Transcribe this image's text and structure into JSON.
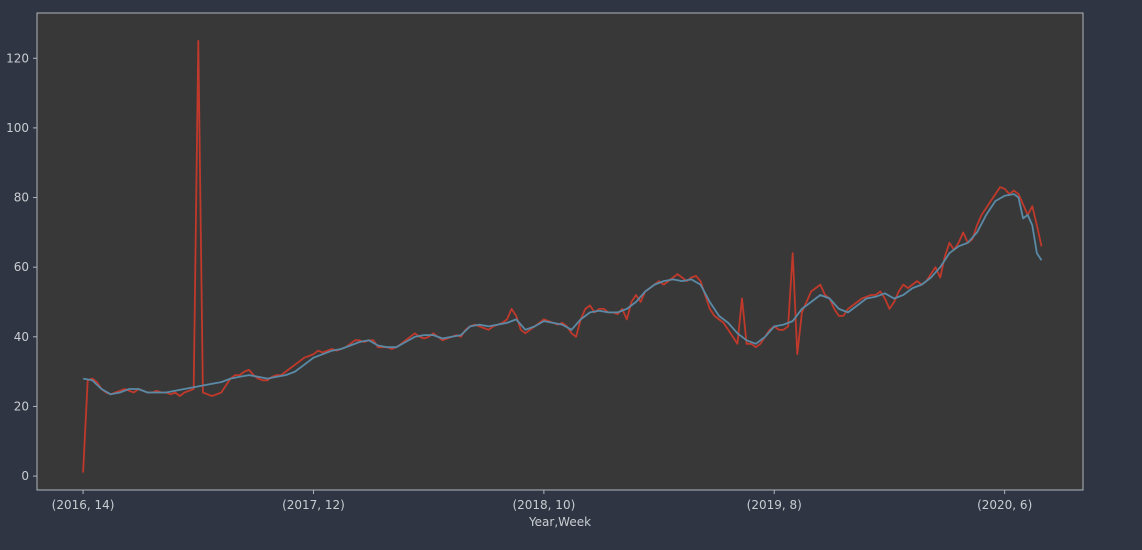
{
  "chart_data": {
    "type": "line",
    "title": "",
    "xlabel": "Year,Week",
    "ylabel": "",
    "x_ticks": [
      {
        "index": 0,
        "label": "(2016, 14)"
      },
      {
        "index": 50,
        "label": "(2017, 12)"
      },
      {
        "index": 100,
        "label": "(2018, 10)"
      },
      {
        "index": 150,
        "label": "(2019, 8)"
      },
      {
        "index": 200,
        "label": "(2020, 6)"
      }
    ],
    "y_ticks": [
      0,
      20,
      40,
      60,
      80,
      100,
      120
    ],
    "xlim": [
      -10,
      217
    ],
    "ylim": [
      -4,
      133
    ],
    "grid": false,
    "colors": {
      "figure_bg": "#2f3542",
      "plot_bg": "#383838",
      "spine": "#b0b6bf",
      "text": "#c9ccd1"
    },
    "series": [
      {
        "color": "#c0392b",
        "points": [
          [
            0,
            1
          ],
          [
            1,
            27.5
          ],
          [
            2,
            28
          ],
          [
            3,
            27
          ],
          [
            4,
            25
          ],
          [
            5,
            24
          ],
          [
            6,
            23.5
          ],
          [
            7,
            24
          ],
          [
            8,
            24.5
          ],
          [
            9,
            25
          ],
          [
            10,
            24.5
          ],
          [
            11,
            24
          ],
          [
            12,
            25
          ],
          [
            13,
            24.5
          ],
          [
            14,
            24
          ],
          [
            15,
            24
          ],
          [
            16,
            24.5
          ],
          [
            17,
            24
          ],
          [
            18,
            24
          ],
          [
            19,
            23.5
          ],
          [
            20,
            24
          ],
          [
            21,
            23
          ],
          [
            22,
            24
          ],
          [
            23,
            24.5
          ],
          [
            24,
            25
          ],
          [
            25,
            125
          ],
          [
            26,
            24
          ],
          [
            27,
            23.5
          ],
          [
            28,
            23
          ],
          [
            29,
            23.5
          ],
          [
            30,
            24
          ],
          [
            31,
            26
          ],
          [
            32,
            28
          ],
          [
            33,
            29
          ],
          [
            34,
            29
          ],
          [
            35,
            30
          ],
          [
            36,
            30.5
          ],
          [
            37,
            29
          ],
          [
            38,
            28
          ],
          [
            39,
            27.5
          ],
          [
            40,
            27.5
          ],
          [
            41,
            28.5
          ],
          [
            42,
            29
          ],
          [
            43,
            29
          ],
          [
            44,
            30
          ],
          [
            45,
            31
          ],
          [
            46,
            32
          ],
          [
            47,
            33
          ],
          [
            48,
            34
          ],
          [
            49,
            34.5
          ],
          [
            50,
            35
          ],
          [
            51,
            36
          ],
          [
            52,
            35.5
          ],
          [
            53,
            36
          ],
          [
            54,
            36.5
          ],
          [
            55,
            36
          ],
          [
            56,
            36.5
          ],
          [
            57,
            37
          ],
          [
            58,
            38
          ],
          [
            59,
            39
          ],
          [
            60,
            39
          ],
          [
            61,
            38.5
          ],
          [
            62,
            39
          ],
          [
            63,
            39
          ],
          [
            64,
            37
          ],
          [
            65,
            37
          ],
          [
            66,
            37
          ],
          [
            67,
            36.5
          ],
          [
            68,
            37
          ],
          [
            69,
            38
          ],
          [
            70,
            39
          ],
          [
            71,
            40
          ],
          [
            72,
            41
          ],
          [
            73,
            40
          ],
          [
            74,
            39.5
          ],
          [
            75,
            40
          ],
          [
            76,
            41
          ],
          [
            77,
            40
          ],
          [
            78,
            39
          ],
          [
            79,
            39.5
          ],
          [
            80,
            40
          ],
          [
            81,
            40.5
          ],
          [
            82,
            40
          ],
          [
            83,
            42
          ],
          [
            84,
            43
          ],
          [
            85,
            43.5
          ],
          [
            86,
            43
          ],
          [
            87,
            42.5
          ],
          [
            88,
            42
          ],
          [
            89,
            43
          ],
          [
            90,
            43.5
          ],
          [
            91,
            44
          ],
          [
            92,
            45
          ],
          [
            93,
            48
          ],
          [
            94,
            46
          ],
          [
            95,
            42
          ],
          [
            96,
            41
          ],
          [
            97,
            42
          ],
          [
            98,
            43
          ],
          [
            99,
            44
          ],
          [
            100,
            45
          ],
          [
            101,
            44.5
          ],
          [
            102,
            44
          ],
          [
            103,
            43.5
          ],
          [
            104,
            44
          ],
          [
            105,
            43
          ],
          [
            106,
            41
          ],
          [
            107,
            40
          ],
          [
            108,
            45
          ],
          [
            109,
            48
          ],
          [
            110,
            49
          ],
          [
            111,
            47
          ],
          [
            112,
            48
          ],
          [
            113,
            48
          ],
          [
            114,
            47
          ],
          [
            115,
            47
          ],
          [
            116,
            46.5
          ],
          [
            117,
            48
          ],
          [
            118,
            45
          ],
          [
            119,
            50
          ],
          [
            120,
            52
          ],
          [
            121,
            50
          ],
          [
            122,
            53
          ],
          [
            123,
            54
          ],
          [
            124,
            55
          ],
          [
            125,
            56
          ],
          [
            126,
            55
          ],
          [
            127,
            56
          ],
          [
            128,
            57
          ],
          [
            129,
            58
          ],
          [
            130,
            57
          ],
          [
            131,
            56
          ],
          [
            132,
            57
          ],
          [
            133,
            57.5
          ],
          [
            134,
            56
          ],
          [
            135,
            52
          ],
          [
            136,
            48
          ],
          [
            137,
            46
          ],
          [
            138,
            45
          ],
          [
            139,
            44
          ],
          [
            140,
            42
          ],
          [
            141,
            40
          ],
          [
            142,
            38
          ],
          [
            143,
            51
          ],
          [
            144,
            38
          ],
          [
            145,
            38
          ],
          [
            146,
            37
          ],
          [
            147,
            38
          ],
          [
            148,
            40
          ],
          [
            149,
            42
          ],
          [
            150,
            43
          ],
          [
            151,
            42
          ],
          [
            152,
            42
          ],
          [
            153,
            43
          ],
          [
            154,
            64
          ],
          [
            155,
            35
          ],
          [
            156,
            47
          ],
          [
            157,
            50
          ],
          [
            158,
            53
          ],
          [
            159,
            54
          ],
          [
            160,
            55
          ],
          [
            161,
            52
          ],
          [
            162,
            51
          ],
          [
            163,
            48
          ],
          [
            164,
            46
          ],
          [
            165,
            46
          ],
          [
            166,
            48
          ],
          [
            167,
            49
          ],
          [
            168,
            50
          ],
          [
            169,
            51
          ],
          [
            170,
            51.5
          ],
          [
            171,
            52
          ],
          [
            172,
            52
          ],
          [
            173,
            53
          ],
          [
            174,
            51
          ],
          [
            175,
            48
          ],
          [
            176,
            50
          ],
          [
            177,
            53
          ],
          [
            178,
            55
          ],
          [
            179,
            54
          ],
          [
            180,
            55
          ],
          [
            181,
            56
          ],
          [
            182,
            55
          ],
          [
            183,
            56
          ],
          [
            184,
            58
          ],
          [
            185,
            60
          ],
          [
            186,
            57
          ],
          [
            187,
            63
          ],
          [
            188,
            67
          ],
          [
            189,
            65
          ],
          [
            190,
            67
          ],
          [
            191,
            70
          ],
          [
            192,
            67
          ],
          [
            193,
            68
          ],
          [
            194,
            72
          ],
          [
            195,
            75
          ],
          [
            196,
            77
          ],
          [
            197,
            79
          ],
          [
            198,
            81
          ],
          [
            199,
            83
          ],
          [
            200,
            82.5
          ],
          [
            201,
            81
          ],
          [
            202,
            82
          ],
          [
            203,
            81
          ],
          [
            204,
            78
          ],
          [
            205,
            75
          ],
          [
            206,
            77.5
          ],
          [
            207,
            72
          ],
          [
            208,
            66
          ]
        ]
      },
      {
        "color": "#5b8aa6",
        "points": [
          [
            0,
            28
          ],
          [
            2,
            27.5
          ],
          [
            4,
            25
          ],
          [
            6,
            23.5
          ],
          [
            8,
            24
          ],
          [
            10,
            25
          ],
          [
            12,
            25
          ],
          [
            14,
            24
          ],
          [
            16,
            24
          ],
          [
            18,
            24
          ],
          [
            20,
            24.5
          ],
          [
            22,
            25
          ],
          [
            24,
            25.5
          ],
          [
            26,
            26
          ],
          [
            28,
            26.5
          ],
          [
            30,
            27
          ],
          [
            32,
            28
          ],
          [
            34,
            28.5
          ],
          [
            36,
            29
          ],
          [
            38,
            28.5
          ],
          [
            40,
            28
          ],
          [
            42,
            28.5
          ],
          [
            44,
            29
          ],
          [
            46,
            30
          ],
          [
            48,
            32
          ],
          [
            50,
            34
          ],
          [
            52,
            35
          ],
          [
            54,
            36
          ],
          [
            56,
            36.5
          ],
          [
            58,
            37.5
          ],
          [
            60,
            38.5
          ],
          [
            62,
            39
          ],
          [
            64,
            37.5
          ],
          [
            66,
            37
          ],
          [
            68,
            37
          ],
          [
            70,
            38.5
          ],
          [
            72,
            40
          ],
          [
            74,
            40.5
          ],
          [
            76,
            40.5
          ],
          [
            78,
            39.5
          ],
          [
            80,
            40
          ],
          [
            82,
            40.5
          ],
          [
            84,
            43
          ],
          [
            86,
            43.5
          ],
          [
            88,
            43
          ],
          [
            90,
            43.5
          ],
          [
            92,
            44
          ],
          [
            94,
            45
          ],
          [
            96,
            42
          ],
          [
            98,
            43
          ],
          [
            100,
            44.5
          ],
          [
            102,
            44
          ],
          [
            104,
            43.5
          ],
          [
            106,
            42
          ],
          [
            108,
            45
          ],
          [
            110,
            47
          ],
          [
            112,
            47.5
          ],
          [
            114,
            47
          ],
          [
            116,
            47
          ],
          [
            118,
            48
          ],
          [
            120,
            50
          ],
          [
            122,
            53
          ],
          [
            124,
            55
          ],
          [
            126,
            56
          ],
          [
            128,
            56.5
          ],
          [
            130,
            56
          ],
          [
            132,
            56.5
          ],
          [
            134,
            55
          ],
          [
            136,
            50
          ],
          [
            138,
            46
          ],
          [
            140,
            44
          ],
          [
            142,
            41
          ],
          [
            144,
            39
          ],
          [
            146,
            38
          ],
          [
            148,
            40
          ],
          [
            150,
            43
          ],
          [
            152,
            43.5
          ],
          [
            154,
            44.5
          ],
          [
            156,
            48
          ],
          [
            158,
            50
          ],
          [
            160,
            52
          ],
          [
            162,
            51
          ],
          [
            164,
            48
          ],
          [
            166,
            47
          ],
          [
            168,
            49
          ],
          [
            170,
            51
          ],
          [
            172,
            51.5
          ],
          [
            174,
            52.5
          ],
          [
            176,
            51
          ],
          [
            178,
            52
          ],
          [
            180,
            54
          ],
          [
            182,
            55
          ],
          [
            184,
            57
          ],
          [
            186,
            60
          ],
          [
            188,
            64
          ],
          [
            190,
            66
          ],
          [
            192,
            67
          ],
          [
            194,
            70
          ],
          [
            196,
            75
          ],
          [
            198,
            79
          ],
          [
            200,
            80.5
          ],
          [
            202,
            81
          ],
          [
            203,
            80
          ],
          [
            204,
            74
          ],
          [
            205,
            75
          ],
          [
            206,
            72
          ],
          [
            207,
            64
          ],
          [
            208,
            62
          ]
        ]
      }
    ]
  }
}
